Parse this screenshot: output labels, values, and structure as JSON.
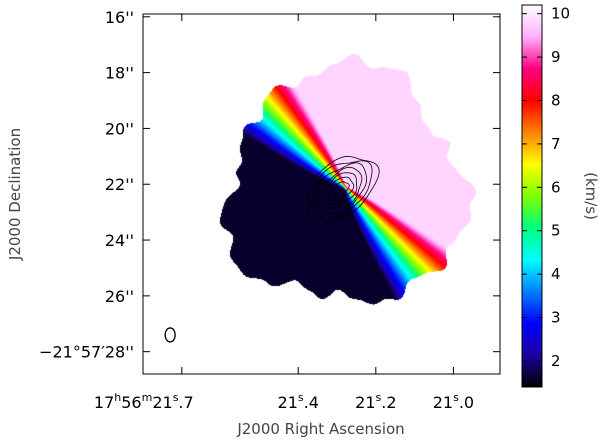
{
  "chart_data": {
    "type": "heatmap",
    "title": "",
    "xlabel": "J2000 Right Ascension",
    "ylabel": "J2000 Declination",
    "x_ticks": [
      {
        "h": "17",
        "h_unit": "h",
        "m": "56",
        "m_unit": "m",
        "s": "21",
        "s_unit": "s",
        "frac": ".7"
      },
      {
        "s": "21",
        "s_unit": "s",
        "frac": ".4"
      },
      {
        "s": "21",
        "s_unit": "s",
        "frac": ".2"
      },
      {
        "s": "21",
        "s_unit": "s",
        "frac": ".0"
      }
    ],
    "x_tick_values_sec": [
      21.7,
      21.4,
      21.2,
      21.0
    ],
    "xlim_sec": [
      21.8,
      20.88
    ],
    "y_ticks": [
      {
        "value": 16,
        "label": "16''"
      },
      {
        "value": 18,
        "label": "18''"
      },
      {
        "value": 20,
        "label": "20''"
      },
      {
        "value": 22,
        "label": "22''"
      },
      {
        "value": 24,
        "label": "24''"
      },
      {
        "value": 26,
        "label": "26''"
      },
      {
        "value": 28,
        "label": "−21°57′28''"
      }
    ],
    "ylim_arcsec": [
      15.9,
      28.8
    ],
    "colorbar": {
      "label": "(km/s)",
      "ticks": [
        2,
        3,
        4,
        5,
        6,
        7,
        8,
        9,
        10
      ],
      "range": [
        1.4,
        10.2
      ],
      "colors": [
        "#000000",
        "#1e00a0",
        "#0000ff",
        "#0080ff",
        "#00ffff",
        "#00ff80",
        "#80ff00",
        "#ffff00",
        "#ff8000",
        "#ff0000",
        "#ff0080",
        "#ffb0ff",
        "#ffffff"
      ]
    },
    "velocity_field": {
      "center_sec": 21.28,
      "center_arcsec": 22.1,
      "systemic_kms": 6.0,
      "blue_peak": {
        "x_sec": 21.31,
        "y_arcsec": 22.7,
        "v_kms": 1.6
      },
      "red_peak": {
        "x_sec": 21.25,
        "y_arcsec": 21.9,
        "v_kms": 9.5
      },
      "min_kms": 1.6,
      "max_kms": 9.8
    },
    "contours": {
      "color": "#000000",
      "levels": 7
    },
    "beam": {
      "x_sec": 21.73,
      "y_arcsec": 27.4
    }
  }
}
